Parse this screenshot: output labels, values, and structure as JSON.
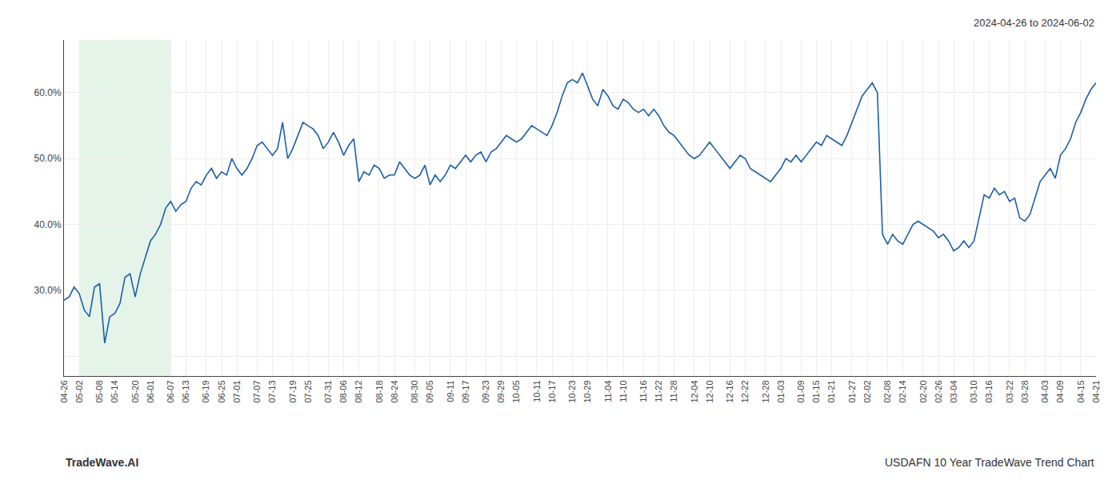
{
  "chart_data": {
    "type": "line",
    "title": "USDAFN 10 Year TradeWave Trend Chart",
    "subtitle": "2024-04-26 to 2024-06-02",
    "annotations": [
      "TradeWave.AI"
    ],
    "categories": [
      "04-26",
      null,
      null,
      "05-02",
      null,
      null,
      null,
      "05-08",
      null,
      null,
      "05-14",
      null,
      null,
      null,
      "05-20",
      null,
      null,
      "06-01",
      null,
      null,
      null,
      "06-07",
      null,
      null,
      "06-13",
      null,
      null,
      null,
      "06-19",
      null,
      null,
      "06-25",
      null,
      null,
      "07-01",
      null,
      null,
      null,
      "07-07",
      null,
      null,
      "07-13",
      null,
      null,
      null,
      "07-19",
      null,
      null,
      "07-25",
      null,
      null,
      null,
      "07-31",
      null,
      null,
      "08-06",
      null,
      null,
      "08-12",
      null,
      null,
      null,
      "08-18",
      null,
      null,
      "08-24",
      null,
      null,
      null,
      "08-30",
      null,
      null,
      "09-05",
      null,
      null,
      null,
      "09-11",
      null,
      null,
      "09-17",
      null,
      null,
      null,
      "09-23",
      null,
      null,
      "09-29",
      null,
      null,
      "10-05",
      null,
      null,
      null,
      "10-11",
      null,
      null,
      "10-17",
      null,
      null,
      null,
      "10-23",
      null,
      null,
      "10-29",
      null,
      null,
      null,
      "11-04",
      null,
      null,
      "11-10",
      null,
      null,
      null,
      "11-16",
      null,
      null,
      "11-22",
      null,
      null,
      "11-28",
      null,
      null,
      null,
      "12-04",
      null,
      null,
      "12-10",
      null,
      null,
      null,
      "12-16",
      null,
      null,
      "12-22",
      null,
      null,
      null,
      "12-28",
      null,
      null,
      "01-03",
      null,
      null,
      null,
      "01-09",
      null,
      null,
      "01-15",
      null,
      null,
      "01-21",
      null,
      null,
      null,
      "01-27",
      null,
      null,
      "02-02",
      null,
      null,
      null,
      "02-08",
      null,
      null,
      "02-14",
      null,
      null,
      null,
      "02-20",
      null,
      null,
      "02-26",
      null,
      null,
      "03-04",
      null,
      null,
      null,
      "03-10",
      null,
      null,
      "03-16",
      null,
      null,
      null,
      "03-22",
      null,
      null,
      "03-28",
      null,
      null,
      null,
      "04-03",
      null,
      null,
      "04-09",
      null,
      null,
      null,
      "04-15",
      null,
      null,
      "04-21"
    ],
    "values": [
      28.5,
      29.0,
      30.5,
      29.5,
      27.0,
      26.0,
      30.5,
      31.0,
      22.0,
      26.0,
      26.5,
      28.0,
      32.0,
      32.5,
      29.0,
      32.5,
      35.0,
      37.5,
      38.5,
      40.0,
      42.5,
      43.5,
      42.0,
      43.0,
      43.5,
      45.5,
      46.5,
      46.0,
      47.5,
      48.5,
      47.0,
      48.0,
      47.5,
      50.0,
      48.5,
      47.5,
      48.5,
      50.0,
      52.0,
      52.5,
      51.5,
      50.5,
      51.5,
      55.5,
      50.0,
      51.5,
      53.5,
      55.5,
      55.0,
      54.5,
      53.5,
      51.5,
      52.5,
      54.0,
      52.5,
      50.5,
      52.0,
      53.0,
      46.5,
      48.0,
      47.5,
      49.0,
      48.5,
      47.0,
      47.5,
      47.5,
      49.5,
      48.5,
      47.5,
      47.0,
      47.5,
      49.0,
      46.0,
      47.5,
      46.5,
      47.5,
      49.0,
      48.5,
      49.5,
      50.5,
      49.5,
      50.5,
      51.0,
      49.5,
      51.0,
      51.5,
      52.5,
      53.5,
      53.0,
      52.5,
      53.0,
      54.0,
      55.0,
      54.5,
      54.0,
      53.5,
      55.0,
      57.0,
      59.5,
      61.5,
      62.0,
      61.5,
      63.0,
      61.0,
      59.0,
      58.0,
      60.5,
      59.5,
      58.0,
      57.5,
      59.0,
      58.5,
      57.5,
      57.0,
      57.5,
      56.5,
      57.5,
      56.5,
      55.0,
      54.0,
      53.5,
      52.5,
      51.5,
      50.5,
      50.0,
      50.5,
      51.5,
      52.5,
      51.5,
      50.5,
      49.5,
      48.5,
      49.5,
      50.5,
      50.0,
      48.5,
      48.0,
      47.5,
      47.0,
      46.5,
      47.5,
      48.5,
      50.0,
      49.5,
      50.5,
      49.5,
      50.5,
      51.5,
      52.5,
      52.0,
      53.5,
      53.0,
      52.5,
      52.0,
      53.5,
      55.5,
      57.5,
      59.5,
      60.5,
      61.5,
      60.0,
      38.5,
      37.0,
      38.5,
      37.5,
      37.0,
      38.5,
      40.0,
      40.5,
      40.0,
      39.5,
      39.0,
      38.0,
      38.5,
      37.5,
      36.0,
      36.5,
      37.5,
      36.5,
      37.5,
      41.0,
      44.5,
      44.0,
      45.5,
      44.5,
      45.0,
      43.5,
      44.0,
      41.0,
      40.5,
      41.5,
      44.0,
      46.5,
      47.5,
      48.5,
      47.0,
      50.5,
      51.5,
      53.0,
      55.5,
      57.0,
      59.0,
      60.5,
      61.5
    ],
    "color": "#1a5fa8",
    "shade": {
      "from": "05-02",
      "to": "06-07",
      "color": "#d4edda"
    },
    "ylim": [
      17,
      68
    ],
    "yticks": [
      {
        "value": 20,
        "label": ""
      },
      {
        "value": 30,
        "label": "30.0%"
      },
      {
        "value": 40,
        "label": "40.0%"
      },
      {
        "value": 50,
        "label": "50.0%"
      },
      {
        "value": 60,
        "label": "60.0%"
      }
    ],
    "grid": true
  }
}
